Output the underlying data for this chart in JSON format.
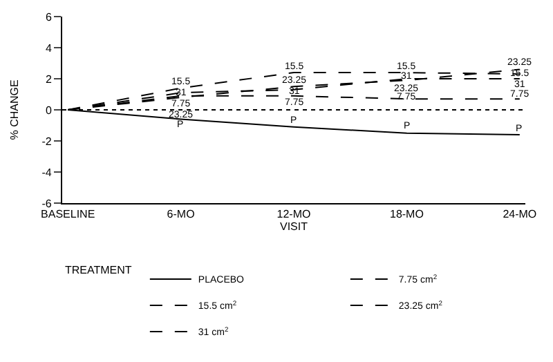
{
  "chart_data": {
    "type": "line",
    "xlabel": "VISIT",
    "ylabel": "% CHANGE",
    "legend_title": "TREATMENT",
    "categories": [
      "BASELINE",
      "6-MO",
      "12-MO",
      "18-MO",
      "24-MO"
    ],
    "series": [
      {
        "name": "PLACEBO",
        "color": "#000000",
        "line_style": "solid",
        "values": [
          0,
          -0.6,
          -1.1,
          -1.5,
          -1.6
        ]
      },
      {
        "name": "7.75 cm$^{2}$",
        "color": "#000000",
        "line_style": "dashed",
        "values": [
          0,
          0.9,
          0.9,
          0.7,
          0.7
        ]
      },
      {
        "name": "15.5 cm$^{2}$",
        "color": "#000000",
        "line_style": "dashed",
        "values": [
          0,
          1.4,
          2.4,
          2.4,
          2.3
        ]
      },
      {
        "name": "23.25 cm$^{2}$",
        "color": "#000000",
        "line_style": "dashed",
        "values": [
          0,
          0.8,
          1.5,
          1.9,
          2.6
        ]
      },
      {
        "name": "31 cm$^{2}$",
        "color": "#000000",
        "line_style": "dashed",
        "values": [
          0,
          1.1,
          1.3,
          2.0,
          2.0
        ]
      }
    ],
    "annotations": [
      {
        "text": "P",
        "x": "6-MO",
        "y": -0.6
      },
      {
        "text": "P",
        "x": "12-MO",
        "y": -1.1
      },
      {
        "text": "P",
        "x": "18-MO",
        "y": -1.5
      },
      {
        "text": "P",
        "x": "24-MO",
        "y": -1.6
      },
      {
        "text": "7.75",
        "x": "6-MO",
        "y": 0.9
      },
      {
        "text": "7.75",
        "x": "12-MO",
        "y": 0.9
      },
      {
        "text": "7.75",
        "x": "18-MO",
        "y": 0.7
      },
      {
        "text": "7.75",
        "x": "24-MO",
        "y": 0.7
      },
      {
        "text": "15.5",
        "x": "6-MO",
        "y": 1.4
      },
      {
        "text": "15.5",
        "x": "12-MO",
        "y": 2.4
      },
      {
        "text": "15.5",
        "x": "18-MO",
        "y": 2.4
      },
      {
        "text": "15.5",
        "x": "24-MO",
        "y": 2.3
      },
      {
        "text": "23.25",
        "x": "6-MO",
        "y": 0.8
      },
      {
        "text": "23.25",
        "x": "12-MO",
        "y": 1.5
      },
      {
        "text": "23.25",
        "x": "18-MO",
        "y": 1.9
      },
      {
        "text": "23.25",
        "x": "24-MO",
        "y": 2.6
      },
      {
        "text": "31",
        "x": "6-MO",
        "y": 1.1
      },
      {
        "text": "31",
        "x": "12-MO",
        "y": 1.3
      },
      {
        "text": "31",
        "x": "18-MO",
        "y": 2.0
      },
      {
        "text": "31",
        "x": "24-MO",
        "y": 2.0
      }
    ],
    "ylim": [
      -6,
      6
    ],
    "yticks": [
      -6,
      -4,
      -2,
      0,
      2,
      4,
      6
    ],
    "legend": "bottom",
    "marker": "none",
    "ref_lines": [
      {
        "axis": "y",
        "value": 0,
        "line_style": "dotted",
        "color": "#000000"
      }
    ]
  }
}
